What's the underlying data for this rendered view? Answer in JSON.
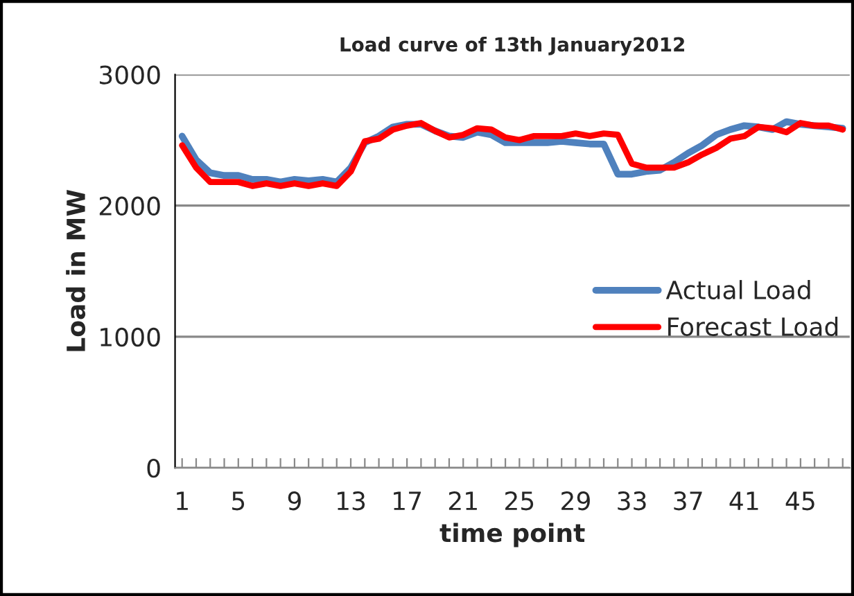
{
  "chart_data": {
    "type": "line",
    "title": "Load curve of 13th January2012",
    "xlabel": "time point",
    "ylabel": "Load in MW",
    "categories": [
      "1",
      null,
      null,
      null,
      "5",
      null,
      null,
      null,
      "9",
      null,
      null,
      null,
      "13",
      null,
      null,
      null,
      "17",
      null,
      null,
      null,
      "21",
      null,
      null,
      null,
      "25",
      null,
      null,
      null,
      "29",
      null,
      null,
      null,
      "33",
      null,
      null,
      null,
      "37",
      null,
      null,
      null,
      "41",
      null,
      null,
      null,
      "45",
      null,
      null,
      null
    ],
    "series": [
      {
        "name": "Actual Load",
        "color": "#4f81bd",
        "values": [
          2530,
          2350,
          2250,
          2230,
          2230,
          2200,
          2200,
          2180,
          2200,
          2190,
          2200,
          2180,
          2290,
          2480,
          2530,
          2600,
          2620,
          2620,
          2570,
          2530,
          2520,
          2560,
          2540,
          2480,
          2480,
          2480,
          2480,
          2490,
          2480,
          2470,
          2470,
          2240,
          2240,
          2260,
          2270,
          2330,
          2400,
          2460,
          2540,
          2580,
          2610,
          2600,
          2580,
          2640,
          2620,
          2610,
          2600,
          2590
        ]
      },
      {
        "name": "Forecast Load",
        "color": "#ff0000",
        "values": [
          2460,
          2290,
          2180,
          2180,
          2180,
          2150,
          2170,
          2150,
          2170,
          2150,
          2170,
          2150,
          2260,
          2490,
          2510,
          2580,
          2610,
          2630,
          2570,
          2520,
          2540,
          2590,
          2580,
          2520,
          2500,
          2530,
          2530,
          2530,
          2550,
          2530,
          2550,
          2540,
          2320,
          2290,
          2290,
          2290,
          2330,
          2390,
          2440,
          2510,
          2530,
          2600,
          2590,
          2560,
          2630,
          2610,
          2610,
          2580
        ]
      }
    ],
    "ylim": [
      0,
      3000
    ],
    "yticks": [
      0,
      1000,
      2000,
      3000
    ],
    "grid": "y",
    "legend": "right",
    "marker": "none",
    "line_style": "solid"
  }
}
